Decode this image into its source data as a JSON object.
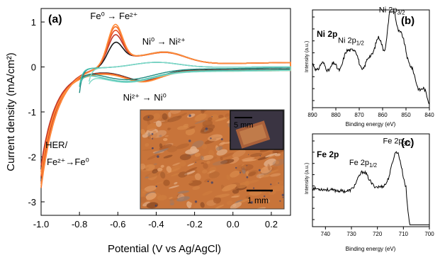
{
  "chart_data": [
    {
      "id": "panel-a",
      "type": "line",
      "panel_label": "(a)",
      "xlabel": "Potential (V vs Ag/AgCl)",
      "ylabel": "Current density (mA/cm²)",
      "xlim": [
        -1.0,
        0.3
      ],
      "ylim": [
        -3.3,
        1.3
      ],
      "x_ticks": [
        -1.0,
        -0.8,
        -0.6,
        -0.4,
        -0.2,
        0.0,
        0.2
      ],
      "x_tick_labels": [
        "-1.0",
        "-0.8",
        "-0.6",
        "-0.4",
        "-0.2",
        "0.0",
        "0.2"
      ],
      "y_ticks": [
        1,
        0,
        -1,
        -2,
        -3
      ],
      "y_tick_labels": [
        "1",
        "0",
        "-1",
        "-2",
        "-3"
      ],
      "grid": false,
      "annotations": [
        {
          "name": "fe-oxidation",
          "text": "Fe⁰ → Fe²⁺",
          "x": -0.62,
          "y": 1.06
        },
        {
          "name": "ni-oxidation",
          "text": "Ni⁰ → Ni²⁺",
          "x": -0.36,
          "y": 0.5
        },
        {
          "name": "ni-reduction",
          "text": "Ni²⁺ → Ni⁰",
          "x": -0.46,
          "y": -0.75
        },
        {
          "name": "her-label",
          "text": "HER/",
          "x": -0.92,
          "y": -1.8
        },
        {
          "name": "fe-reduction",
          "text": "Fe²⁺→Fe⁰",
          "x": -0.86,
          "y": -2.18
        }
      ],
      "series": [
        {
          "color": "#1a1a1a",
          "fe_peak": 0.43,
          "ni_peak": 0.28,
          "ret": -0.05,
          "low": -2.55,
          "teal": false
        },
        {
          "color": "#c0392b",
          "fe_peak": 0.6,
          "ni_peak": 0.27,
          "ret": -0.06,
          "low": -2.45,
          "teal": false
        },
        {
          "color": "#e8502a",
          "fe_peak": 0.7,
          "ni_peak": 0.27,
          "ret": -0.07,
          "low": -2.6,
          "teal": false
        },
        {
          "color": "#f36b24",
          "fe_peak": 0.78,
          "ni_peak": 0.27,
          "ret": -0.07,
          "low": -2.7,
          "teal": false
        },
        {
          "color": "#ff8c3a",
          "fe_peak": 0.83,
          "ni_peak": 0.28,
          "ret": -0.08,
          "low": -2.65,
          "teal": false
        },
        {
          "color": "#1e8a80",
          "start": -0.8,
          "low": -0.55,
          "ni_peak": -0.02,
          "teal": true
        },
        {
          "color": "#48c1b0",
          "start": -0.8,
          "low": -0.4,
          "ni_peak": -0.06,
          "teal": true
        },
        {
          "color": "#7fd8c8",
          "start": -0.75,
          "low": -0.3,
          "ni_peak": -0.08,
          "teal": true
        }
      ],
      "inset": {
        "scale_bar_small": "5 mm",
        "scale_bar_large": "1 mm",
        "background_color": "#c8743a"
      }
    },
    {
      "id": "panel-b",
      "type": "line",
      "panel_label": "(b)",
      "title": "Ni 2p",
      "xlabel": "Binding energy (eV)",
      "ylabel": "Intensity (a.u.)",
      "xlim": [
        890,
        840
      ],
      "x_ticks": [
        890,
        880,
        870,
        860,
        850,
        840
      ],
      "x_tick_labels": [
        "890",
        "880",
        "870",
        "860",
        "850",
        "840"
      ],
      "peaks": [
        {
          "label": "Ni 2p",
          "sub": "1/2",
          "x": 873.5,
          "height": 0.62
        },
        {
          "label": "Ni 2p",
          "sub": "3/2",
          "x": 856.0,
          "height": 0.93
        }
      ]
    },
    {
      "id": "panel-c",
      "type": "line",
      "panel_label": "(c)",
      "title": "Fe 2p",
      "xlabel": "Binding energy (eV)",
      "ylabel": "Intensity (a.u.)",
      "xlim": [
        745,
        700
      ],
      "x_ticks": [
        740,
        730,
        720,
        710,
        700
      ],
      "x_tick_labels": [
        "740",
        "730",
        "720",
        "710",
        "700"
      ],
      "peaks": [
        {
          "label": "Fe 2p",
          "sub": "1/2",
          "x": 725.5,
          "height": 0.62
        },
        {
          "label": "Fe 2p",
          "sub": "3/2",
          "x": 712.5,
          "height": 0.85
        }
      ]
    }
  ]
}
